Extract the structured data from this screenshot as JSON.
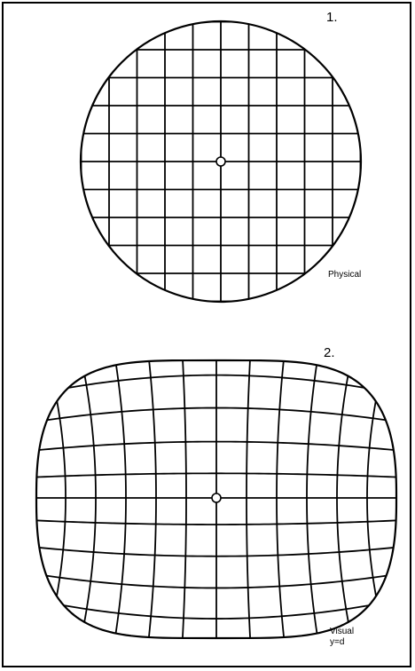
{
  "figure": {
    "panel1": {
      "number": "1.",
      "caption": "Physical"
    },
    "panel2": {
      "number": "2.",
      "caption_line1": "Visual",
      "caption_line2": "y=d"
    }
  }
}
